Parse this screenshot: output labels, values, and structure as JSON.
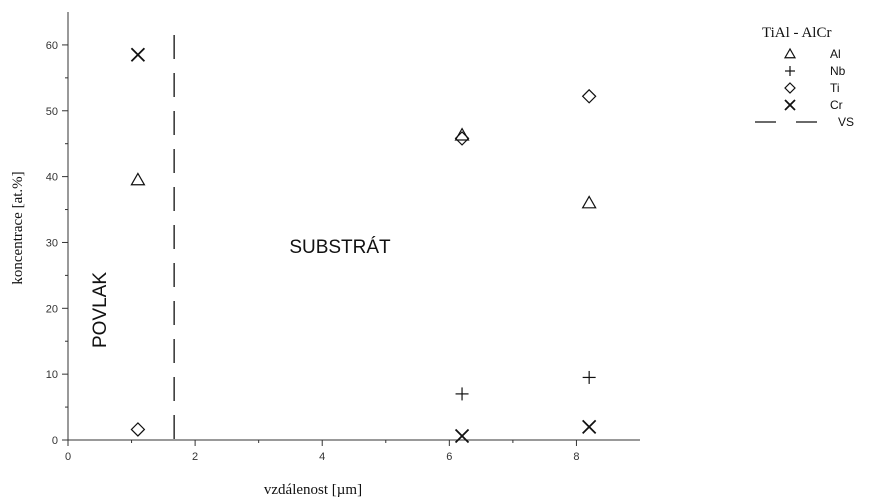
{
  "chart_data": {
    "type": "scatter",
    "title": "",
    "xlabel": "vzdálenost [µm]",
    "ylabel": "koncentrace [at.%]",
    "xlim": [
      0,
      9
    ],
    "ylim": [
      0,
      65
    ],
    "x_ticks": [
      0,
      2,
      4,
      6,
      8
    ],
    "y_ticks": [
      0,
      10,
      20,
      30,
      40,
      50,
      60
    ],
    "grid": false,
    "legend_title": "TiAl - AlCr",
    "legend_position": "top-right",
    "series": [
      {
        "name": "Al",
        "marker": "triangle",
        "points": [
          [
            1.1,
            39.5
          ],
          [
            6.2,
            46.3
          ],
          [
            8.2,
            36.0
          ]
        ]
      },
      {
        "name": "Nb",
        "marker": "plus",
        "points": [
          [
            6.2,
            7.0
          ],
          [
            8.2,
            9.5
          ]
        ]
      },
      {
        "name": "Ti",
        "marker": "diamond",
        "points": [
          [
            1.1,
            1.6
          ],
          [
            6.2,
            45.8
          ],
          [
            8.2,
            52.2
          ]
        ]
      },
      {
        "name": "Cr",
        "marker": "x",
        "points": [
          [
            1.1,
            58.5
          ],
          [
            6.2,
            0.6
          ],
          [
            8.2,
            2.0
          ]
        ]
      }
    ],
    "reference_line": {
      "name": "VS",
      "x": 1.67,
      "style": "dashed"
    },
    "annotations": [
      {
        "text": "POVLAK",
        "rotated": true
      },
      {
        "text": "SUBSTRÁT",
        "rotated": false
      }
    ],
    "colors": {
      "marks": "#111111",
      "axes": "#333333"
    }
  }
}
